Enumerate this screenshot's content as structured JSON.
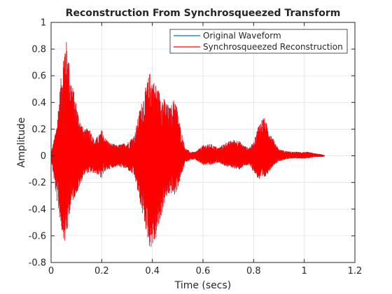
{
  "chart_data": {
    "type": "line",
    "title": "Reconstruction From Synchrosqueezed Transform",
    "xlabel": "Time (secs)",
    "ylabel": "Amplitude",
    "xlim": [
      0,
      1.2
    ],
    "ylim": [
      -0.8,
      1
    ],
    "xticks": [
      0,
      0.2,
      0.4,
      0.6,
      0.8,
      1,
      1.2
    ],
    "xtick_labels": [
      "0",
      "0.2",
      "0.4",
      "0.6",
      "0.8",
      "1",
      "1.2"
    ],
    "yticks": [
      -0.8,
      -0.6,
      -0.4,
      -0.2,
      0,
      0.2,
      0.4,
      0.6,
      0.8,
      1
    ],
    "ytick_labels": [
      "-0.8",
      "-0.6",
      "-0.4",
      "-0.2",
      "0",
      "0.2",
      "0.4",
      "0.6",
      "0.8",
      "1"
    ],
    "grid": true,
    "legend_position": "top-right",
    "series": [
      {
        "name": "Original Waveform",
        "color": "#0072BD",
        "envelope": {
          "t": [
            0.0,
            0.02,
            0.04,
            0.055,
            0.065,
            0.075,
            0.09,
            0.11,
            0.13,
            0.15,
            0.17,
            0.19,
            0.2,
            0.21,
            0.23,
            0.26,
            0.3,
            0.33,
            0.35,
            0.37,
            0.39,
            0.41,
            0.43,
            0.45,
            0.47,
            0.49,
            0.51,
            0.53,
            0.55,
            0.57,
            0.6,
            0.63,
            0.66,
            0.69,
            0.72,
            0.74,
            0.76,
            0.78,
            0.8,
            0.82,
            0.84,
            0.86,
            0.88,
            0.9,
            0.92,
            0.95,
            0.98,
            1.01,
            1.04,
            1.07,
            1.08
          ],
          "max": [
            0.02,
            0.2,
            0.6,
            0.89,
            0.84,
            0.62,
            0.48,
            0.3,
            0.19,
            0.22,
            0.12,
            0.16,
            0.2,
            0.15,
            0.1,
            0.08,
            0.1,
            0.16,
            0.35,
            0.49,
            0.63,
            0.55,
            0.48,
            0.42,
            0.36,
            0.45,
            0.22,
            0.06,
            0.03,
            0.03,
            0.08,
            0.09,
            0.06,
            0.1,
            0.12,
            0.12,
            0.08,
            0.06,
            0.1,
            0.24,
            0.3,
            0.2,
            0.12,
            0.05,
            0.04,
            0.03,
            0.03,
            0.03,
            0.02,
            0.01,
            0.005
          ],
          "min": [
            -0.02,
            -0.3,
            -0.55,
            -0.66,
            -0.56,
            -0.4,
            -0.32,
            -0.25,
            -0.14,
            -0.13,
            -0.13,
            -0.15,
            -0.18,
            -0.12,
            -0.1,
            -0.08,
            -0.1,
            -0.16,
            -0.35,
            -0.52,
            -0.7,
            -0.66,
            -0.5,
            -0.34,
            -0.28,
            -0.3,
            -0.18,
            -0.05,
            -0.03,
            -0.03,
            -0.07,
            -0.07,
            -0.05,
            -0.08,
            -0.09,
            -0.11,
            -0.08,
            -0.07,
            -0.12,
            -0.18,
            -0.18,
            -0.12,
            -0.07,
            -0.04,
            -0.03,
            -0.02,
            -0.02,
            -0.02,
            -0.01,
            -0.008,
            -0.005
          ]
        }
      },
      {
        "name": "Synchrosqueezed Reconstruction",
        "color": "#FF0000",
        "same_as": "Original Waveform"
      }
    ]
  }
}
